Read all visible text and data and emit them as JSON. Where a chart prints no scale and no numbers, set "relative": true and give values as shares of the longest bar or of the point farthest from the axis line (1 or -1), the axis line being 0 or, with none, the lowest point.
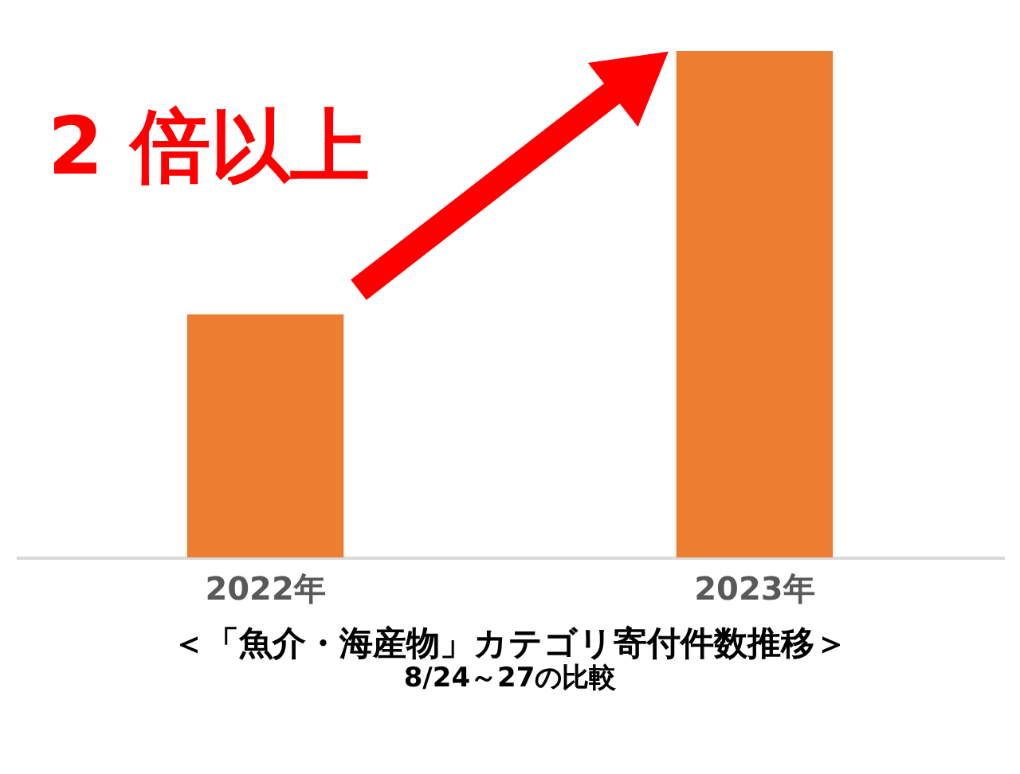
{
  "chart_data": {
    "type": "bar",
    "relative": true,
    "title": "＜「魚介・海産物」カテゴリ寄付件数推移＞",
    "subtitle": "8/24～27の比較",
    "categories": [
      "2022年",
      "2023年"
    ],
    "values": [
      0.48,
      1
    ],
    "color": "#ed7d31",
    "annotations": [
      "2 倍以上"
    ]
  }
}
